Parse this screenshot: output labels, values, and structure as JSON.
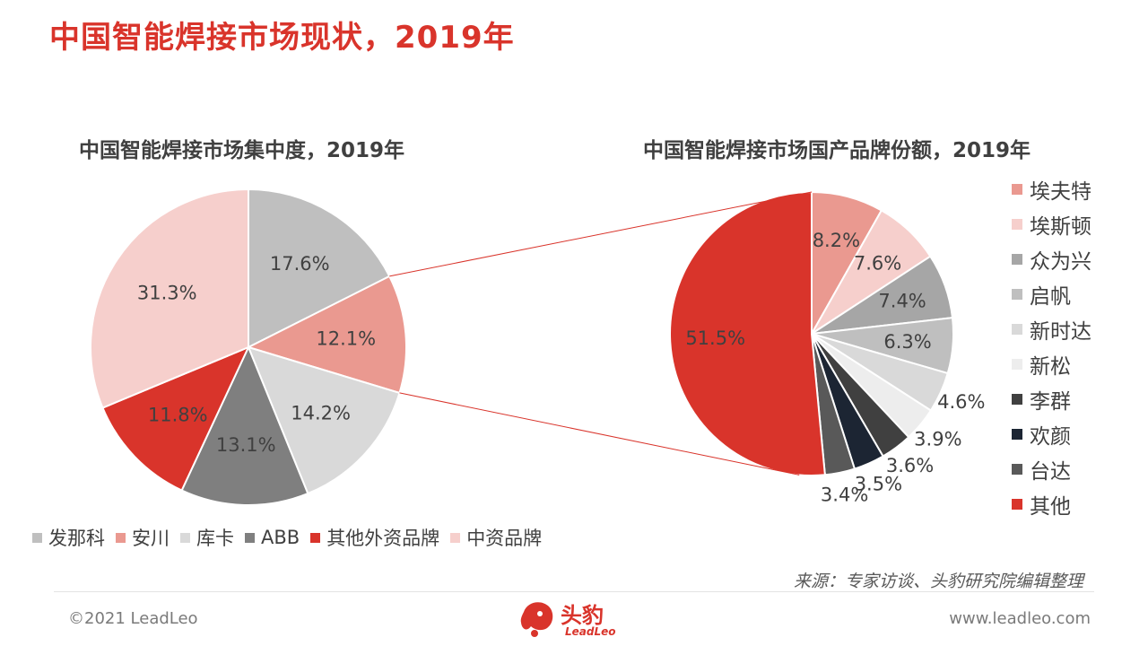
{
  "page": {
    "title": "中国智能焊接市场现状，2019年",
    "source": "来源：专家访谈、头豹研究院编辑整理",
    "copyright": "©2021 LeadLeo",
    "website": "www.leadleo.com",
    "logo_cn": "头豹",
    "logo_en": "LeadLeo"
  },
  "chart_data": [
    {
      "type": "pie",
      "title": "中国智能焊接市场集中度，2019年",
      "categories": [
        "发那科",
        "安川",
        "库卡",
        "ABB",
        "其他外资品牌",
        "中资品牌"
      ],
      "values": [
        17.6,
        12.1,
        14.2,
        13.1,
        11.8,
        31.3
      ],
      "labels": [
        "17.6%",
        "12.1%",
        "14.2%",
        "13.1%",
        "11.8%",
        "31.3%"
      ],
      "colors": [
        "#bfbfbf",
        "#ea9990",
        "#d9d9d9",
        "#7f7f7f",
        "#d9342b",
        "#f6cfcc"
      ],
      "legend_position": "bottom"
    },
    {
      "type": "pie",
      "title": "中国智能焊接市场国产品牌份额，2019年",
      "categories": [
        "埃夫特",
        "埃斯顿",
        "众为兴",
        "启帆",
        "新时达",
        "新松",
        "李群",
        "欢颜",
        "台达",
        "其他"
      ],
      "values": [
        8.2,
        7.6,
        7.4,
        6.3,
        4.6,
        3.9,
        3.6,
        3.5,
        3.4,
        51.5
      ],
      "labels": [
        "8.2%",
        "7.6%",
        "7.4%",
        "6.3%",
        "4.6%",
        "3.9%",
        "3.6%",
        "3.5%",
        "3.4%",
        "51.5%"
      ],
      "colors": [
        "#ea9990",
        "#f6cfcc",
        "#a6a6a6",
        "#bfbfbf",
        "#d9d9d9",
        "#ededed",
        "#404040",
        "#1c2533",
        "#595959",
        "#d9342b"
      ],
      "legend_position": "right"
    }
  ]
}
